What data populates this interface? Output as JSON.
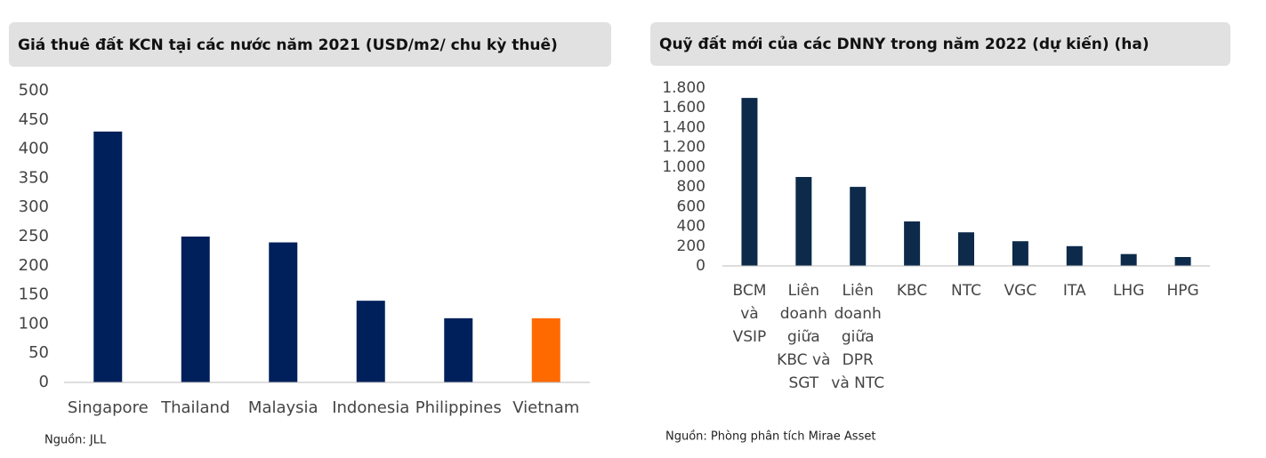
{
  "chart_data": [
    {
      "type": "bar",
      "title": "Giá thuê đất KCN tại các nước năm 2021 (USD/m2/ chu kỳ thuê)",
      "categories": [
        "Singapore",
        "Thailand",
        "Malaysia",
        "Indonesia",
        "Philippines",
        "Vietnam"
      ],
      "values": [
        430,
        250,
        240,
        140,
        110,
        110
      ],
      "colors": [
        "#00205b",
        "#00205b",
        "#00205b",
        "#00205b",
        "#00205b",
        "#ff6a00"
      ],
      "ylim": [
        0,
        500
      ],
      "yticks": [
        0,
        50,
        100,
        150,
        200,
        250,
        300,
        350,
        400,
        450,
        500
      ],
      "grid": false,
      "source": "Nguồn: JLL"
    },
    {
      "type": "bar",
      "title": "Quỹ đất mới của các DNNY trong năm 2022 (dự kiến) (ha)",
      "categories": [
        "BCM và VSIP",
        "Liên doanh giữa KBC và SGT",
        "Liên doanh giữa DPR và NTC",
        "KBC",
        "NTC",
        "VGC",
        "ITA",
        "LHG",
        "HPG"
      ],
      "values": [
        1700,
        900,
        800,
        450,
        340,
        250,
        200,
        120,
        90
      ],
      "colors": [
        "#0d2a4a",
        "#0d2a4a",
        "#0d2a4a",
        "#0d2a4a",
        "#0d2a4a",
        "#0d2a4a",
        "#0d2a4a",
        "#0d2a4a",
        "#0d2a4a"
      ],
      "ylim": [
        0,
        1800
      ],
      "yticks": [
        0,
        200,
        400,
        600,
        800,
        {
          "value": 1000,
          "label": "1.000"
        },
        {
          "value": 1200,
          "label": "1.200"
        },
        {
          "value": 1400,
          "label": "1.400"
        },
        {
          "value": 1600,
          "label": "1.600"
        },
        {
          "value": 1800,
          "label": "1.800"
        }
      ],
      "grid": false,
      "source": "Nguồn: Phòng phân tích Mirae Asset"
    }
  ]
}
